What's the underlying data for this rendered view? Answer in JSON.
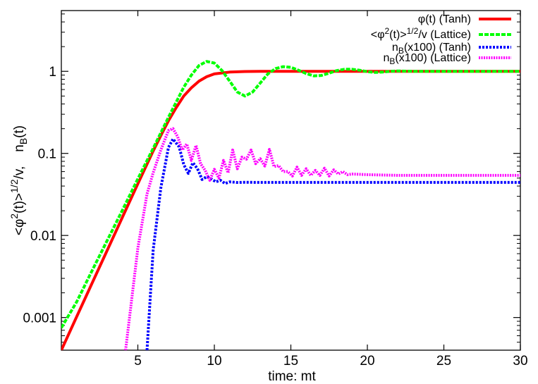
{
  "chart_data": {
    "type": "line",
    "title": "",
    "xlabel": "time: mt",
    "ylabel_parts": {
      "lead": "<φ",
      "sup1": "2",
      "mid": "(t)>",
      "sup2": "1/2",
      "tail": "/v,",
      "nb": "n",
      "nb_sub": "B",
      "nb_tail": "(t)"
    },
    "xlim": [
      0,
      30
    ],
    "ylim": [
      0.0004,
      5.5
    ],
    "yscale": "log",
    "x_ticks": [
      5,
      10,
      15,
      20,
      25,
      30
    ],
    "x_tick_labels": [
      "5",
      "10",
      "15",
      "20",
      "25",
      "30"
    ],
    "y_ticks": [
      0.001,
      0.01,
      0.1,
      1
    ],
    "y_tick_labels": [
      "0.001",
      "0.01",
      "0.1",
      "1"
    ],
    "grid": false,
    "legend_position": "top-right",
    "series": [
      {
        "name": "φ(t)  (Tanh)",
        "legend": {
          "main": "φ(t)  (Tanh)"
        },
        "color": "#ff0000",
        "dash": "solid",
        "x": [
          0,
          1,
          2,
          3,
          4,
          5,
          6,
          6.5,
          7,
          7.5,
          8,
          8.5,
          9,
          9.5,
          10,
          11,
          12,
          13,
          15,
          20,
          25,
          30
        ],
        "y": [
          0.0004,
          0.00102,
          0.0026,
          0.0066,
          0.0168,
          0.0427,
          0.107,
          0.165,
          0.25,
          0.36,
          0.5,
          0.63,
          0.76,
          0.86,
          0.93,
          0.98,
          0.995,
          1.0,
          1.0,
          1.0,
          1.0,
          1.0
        ]
      },
      {
        "name": "<φ²(t)>¹ᐟ²/v  (Lattice)",
        "legend": {
          "lead": "<φ",
          "sup1": "2",
          "mid": "(t)>",
          "sup2": "1/2",
          "tail": "/v  (Lattice)"
        },
        "color": "#00ff00",
        "dash": "dashed",
        "x": [
          0,
          1,
          2,
          3,
          4,
          5,
          6,
          7,
          7.5,
          8,
          8.5,
          9,
          9.5,
          10,
          10.5,
          11,
          11.5,
          12,
          12.5,
          13,
          13.5,
          14,
          14.5,
          15,
          15.5,
          16,
          16.5,
          17,
          17.5,
          18,
          18.5,
          19,
          19.5,
          20,
          20.5,
          21,
          21.5,
          22,
          23,
          25,
          28,
          30
        ],
        "y": [
          0.00075,
          0.00155,
          0.0037,
          0.0087,
          0.0205,
          0.049,
          0.115,
          0.275,
          0.42,
          0.64,
          0.9,
          1.18,
          1.32,
          1.26,
          1.02,
          0.76,
          0.56,
          0.5,
          0.56,
          0.72,
          0.93,
          1.08,
          1.14,
          1.12,
          1.03,
          0.94,
          0.88,
          0.89,
          0.95,
          1.02,
          1.06,
          1.06,
          1.03,
          0.99,
          0.97,
          0.98,
          1.0,
          1.01,
          1.0,
          1.0,
          1.0,
          1.0
        ]
      },
      {
        "name": "nB(x100) (Tanh)",
        "legend": {
          "n": "n",
          "sub": "B",
          "rest": "(x100) (Tanh)"
        },
        "color": "#0000ff",
        "dash": "dotted",
        "x": [
          5.6,
          6,
          6.5,
          7,
          7.3,
          7.7,
          8,
          8.3,
          8.6,
          8.9,
          9.2,
          9.5,
          9.8,
          10.1,
          10.4,
          10.7,
          11,
          11.5,
          12,
          13,
          15,
          20,
          25,
          30
        ],
        "y": [
          0.0004,
          0.0066,
          0.038,
          0.118,
          0.15,
          0.12,
          0.073,
          0.057,
          0.077,
          0.065,
          0.048,
          0.052,
          0.049,
          0.045,
          0.047,
          0.043,
          0.045,
          0.0442,
          0.0445,
          0.0443,
          0.0443,
          0.0443,
          0.0443,
          0.0443
        ]
      },
      {
        "name": "nB(x100) (Lattice)",
        "legend": {
          "n": "n",
          "sub": "B",
          "rest": "(x100) (Lattice)"
        },
        "color": "#ff00ff",
        "dash": "dotted",
        "x": [
          4.2,
          5,
          5.6,
          6,
          6.5,
          7,
          7.3,
          7.6,
          7.9,
          8.2,
          8.5,
          8.8,
          9.1,
          9.4,
          9.7,
          10,
          10.3,
          10.6,
          10.9,
          11.2,
          11.5,
          11.8,
          12.1,
          12.4,
          12.7,
          13,
          13.3,
          13.6,
          13.9,
          14.2,
          14.5,
          14.8,
          15.1,
          15.4,
          15.7,
          16,
          16.3,
          16.6,
          16.9,
          17.2,
          17.5,
          17.8,
          18.1,
          18.4,
          18.7,
          19,
          20,
          22,
          25,
          28,
          30
        ],
        "y": [
          0.0004,
          0.007,
          0.032,
          0.058,
          0.11,
          0.19,
          0.2,
          0.16,
          0.11,
          0.13,
          0.082,
          0.125,
          0.075,
          0.062,
          0.047,
          0.064,
          0.05,
          0.082,
          0.058,
          0.11,
          0.065,
          0.09,
          0.085,
          0.11,
          0.075,
          0.086,
          0.07,
          0.112,
          0.069,
          0.071,
          0.06,
          0.06,
          0.053,
          0.068,
          0.054,
          0.065,
          0.054,
          0.062,
          0.054,
          0.066,
          0.053,
          0.063,
          0.056,
          0.06,
          0.055,
          0.056,
          0.055,
          0.054,
          0.054,
          0.054,
          0.054
        ]
      }
    ]
  }
}
